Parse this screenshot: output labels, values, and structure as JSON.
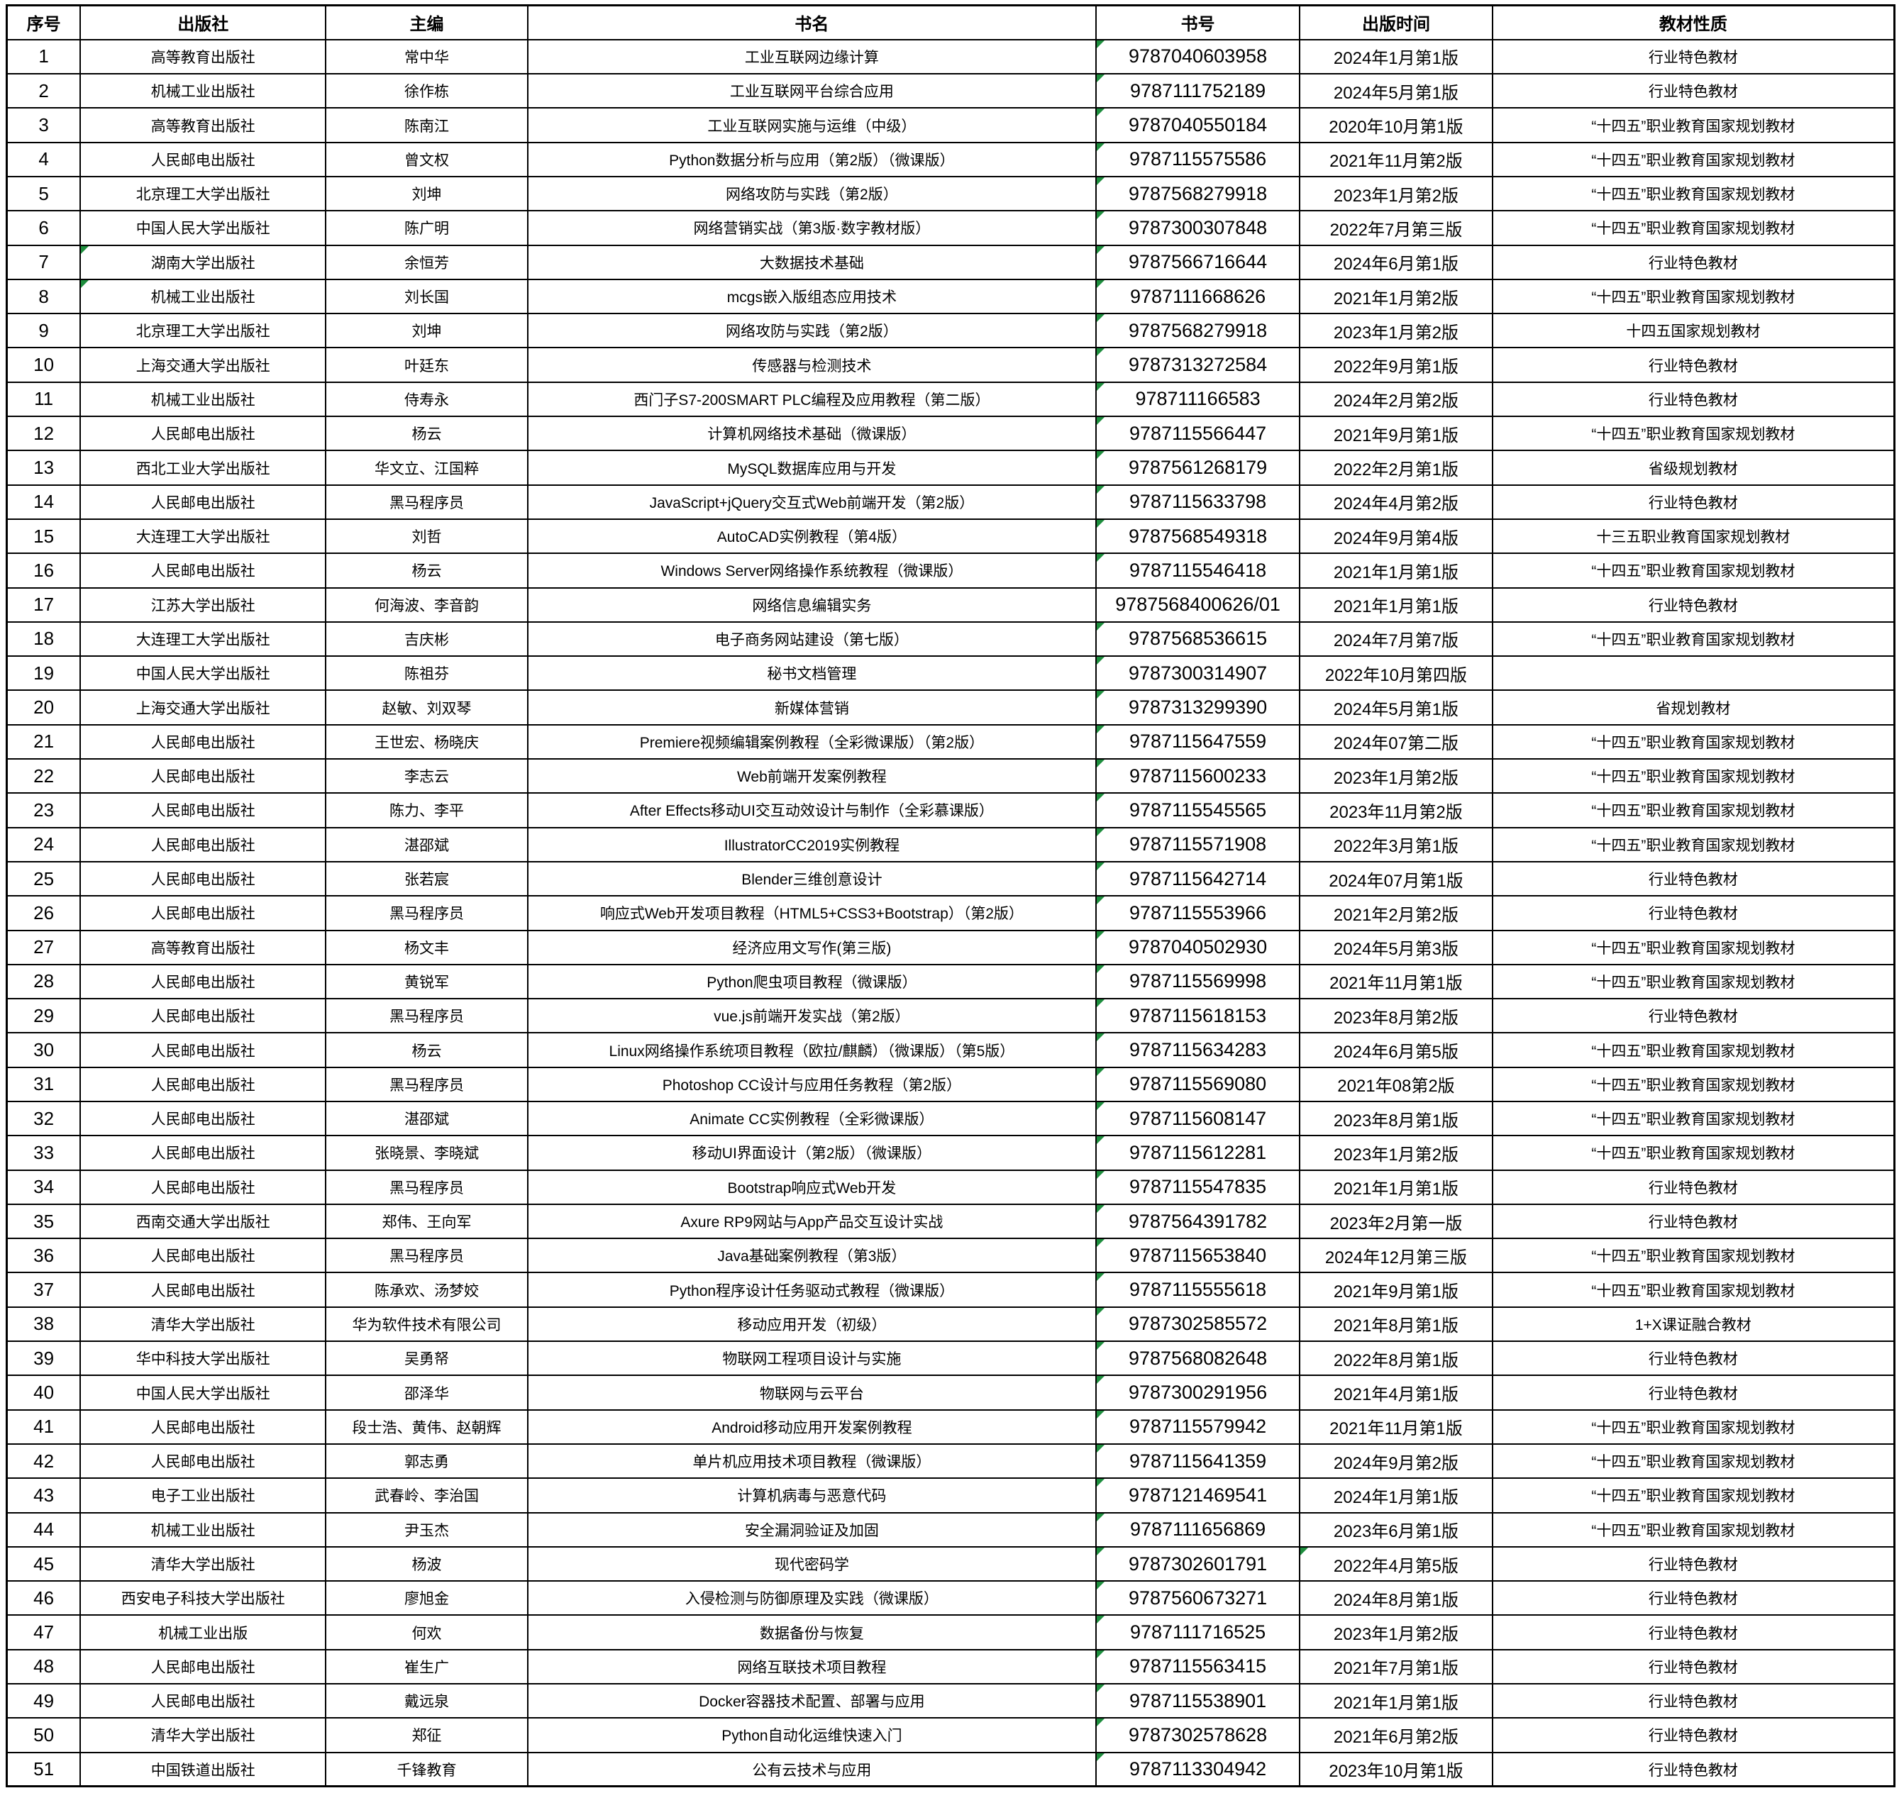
{
  "colors": {
    "border": "#000000",
    "background": "#ffffff",
    "error_indicator_green": "#1e8e3e"
  },
  "table": {
    "columns": [
      {
        "key": "seq",
        "label": "序号",
        "width_pct": 3.9
      },
      {
        "key": "publisher",
        "label": "出版社",
        "width_pct": 13.0
      },
      {
        "key": "editor",
        "label": "主编",
        "width_pct": 10.7
      },
      {
        "key": "title",
        "label": "书名",
        "width_pct": 30.1
      },
      {
        "key": "isbn",
        "label": "书号",
        "width_pct": 10.8
      },
      {
        "key": "date",
        "label": "出版时间",
        "width_pct": 10.2
      },
      {
        "key": "nature",
        "label": "教材性质",
        "width_pct": 21.3
      }
    ],
    "rows": [
      {
        "seq": "1",
        "publisher": "高等教育出版社",
        "editor": "常中华",
        "title": "工业互联网边缘计算",
        "isbn": "9787040603958",
        "date": "2024年1月第1版",
        "nature": "行业特色教材",
        "flags": [
          "isbn"
        ]
      },
      {
        "seq": "2",
        "publisher": "机械工业出版社",
        "editor": "徐作栋",
        "title": "工业互联网平台综合应用",
        "isbn": "9787111752189",
        "date": "2024年5月第1版",
        "nature": "行业特色教材",
        "flags": [
          "isbn"
        ]
      },
      {
        "seq": "3",
        "publisher": "高等教育出版社",
        "editor": "陈南江",
        "title": "工业互联网实施与运维（中级）",
        "isbn": "9787040550184",
        "date": "2020年10月第1版",
        "nature": "“十四五”职业教育国家规划教材",
        "flags": [
          "isbn"
        ]
      },
      {
        "seq": "4",
        "publisher": "人民邮电出版社",
        "editor": "曾文权",
        "title": "Python数据分析与应用（第2版）（微课版）",
        "isbn": "9787115575586",
        "date": "2021年11月第2版",
        "nature": "“十四五”职业教育国家规划教材",
        "flags": [
          "isbn"
        ]
      },
      {
        "seq": "5",
        "publisher": "北京理工大学出版社",
        "editor": "刘坤",
        "title": "网络攻防与实践（第2版）",
        "isbn": "9787568279918",
        "date": "2023年1月第2版",
        "nature": "“十四五”职业教育国家规划教材",
        "flags": [
          "isbn"
        ]
      },
      {
        "seq": "6",
        "publisher": "中国人民大学出版社",
        "editor": "陈广明",
        "title": "网络营销实战（第3版·数字教材版）",
        "isbn": "9787300307848",
        "date": "2022年7月第三版",
        "nature": "“十四五”职业教育国家规划教材",
        "flags": [
          "isbn"
        ]
      },
      {
        "seq": "7",
        "publisher": "湖南大学出版社",
        "editor": "余恒芳",
        "title": "大数据技术基础",
        "isbn": "9787566716644",
        "date": "2024年6月第1版",
        "nature": "行业特色教材",
        "flags": [
          "publisher",
          "isbn"
        ]
      },
      {
        "seq": "8",
        "publisher": "机械工业出版社",
        "editor": "刘长国",
        "title": "mcgs嵌入版组态应用技术",
        "isbn": "9787111668626",
        "date": "2021年1月第2版",
        "nature": "“十四五”职业教育国家规划教材",
        "flags": [
          "publisher",
          "isbn"
        ]
      },
      {
        "seq": "9",
        "publisher": "北京理工大学出版社",
        "editor": "刘坤",
        "title": "网络攻防与实践（第2版）",
        "isbn": "9787568279918",
        "date": "2023年1月第2版",
        "nature": "十四五国家规划教材",
        "flags": [
          "isbn"
        ]
      },
      {
        "seq": "10",
        "publisher": "上海交通大学出版社",
        "editor": "叶廷东",
        "title": "传感器与检测技术",
        "isbn": "9787313272584",
        "date": "2022年9月第1版",
        "nature": "行业特色教材",
        "flags": [
          "isbn"
        ]
      },
      {
        "seq": "11",
        "publisher": "机械工业出版社",
        "editor": "侍寿永",
        "title": "西门子S7-200SMART PLC编程及应用教程（第二版）",
        "isbn": "978711166583",
        "date": "2024年2月第2版",
        "nature": "行业特色教材",
        "flags": [
          "isbn"
        ]
      },
      {
        "seq": "12",
        "publisher": "人民邮电出版社",
        "editor": "杨云",
        "title": "计算机网络技术基础（微课版）",
        "isbn": "9787115566447",
        "date": "2021年9月第1版",
        "nature": "“十四五”职业教育国家规划教材",
        "flags": [
          "isbn"
        ]
      },
      {
        "seq": "13",
        "publisher": "西北工业大学出版社",
        "editor": "华文立、江国粹",
        "title": "MySQL数据库应用与开发",
        "isbn": "9787561268179",
        "date": "2022年2月第1版",
        "nature": "省级规划教材",
        "flags": [
          "isbn"
        ]
      },
      {
        "seq": "14",
        "publisher": "人民邮电出版社",
        "editor": "黑马程序员",
        "title": "JavaScript+jQuery交互式Web前端开发（第2版）",
        "isbn": "9787115633798",
        "date": "2024年4月第2版",
        "nature": "行业特色教材",
        "flags": [
          "isbn"
        ]
      },
      {
        "seq": "15",
        "publisher": "大连理工大学出版社",
        "editor": "刘哲",
        "title": "AutoCAD实例教程（第4版）",
        "isbn": "9787568549318",
        "date": "2024年9月第4版",
        "nature": "十三五职业教育国家规划教材",
        "flags": [
          "isbn"
        ]
      },
      {
        "seq": "16",
        "publisher": "人民邮电出版社",
        "editor": "杨云",
        "title": "Windows Server网络操作系统教程（微课版）",
        "isbn": "9787115546418",
        "date": "2021年1月第1版",
        "nature": "“十四五”职业教育国家规划教材",
        "flags": [
          "isbn"
        ]
      },
      {
        "seq": "17",
        "publisher": "江苏大学出版社",
        "editor": "何海波、李音韵",
        "title": "网络信息编辑实务",
        "isbn": "9787568400626/01",
        "date": "2021年1月第1版",
        "nature": "行业特色教材",
        "flags": []
      },
      {
        "seq": "18",
        "publisher": "大连理工大学出版社",
        "editor": "吉庆彬",
        "title": "电子商务网站建设（第七版）",
        "isbn": "9787568536615",
        "date": "2024年7月第7版",
        "nature": "“十四五”职业教育国家规划教材",
        "flags": [
          "isbn"
        ]
      },
      {
        "seq": "19",
        "publisher": "中国人民大学出版社",
        "editor": "陈祖芬",
        "title": "秘书文档管理",
        "isbn": "9787300314907",
        "date": "2022年10月第四版",
        "nature": "",
        "flags": [
          "isbn"
        ]
      },
      {
        "seq": "20",
        "publisher": "上海交通大学出版社",
        "editor": "赵敏、刘双琴",
        "title": "新媒体营销",
        "isbn": "9787313299390",
        "date": "2024年5月第1版",
        "nature": "省规划教材",
        "flags": [
          "isbn"
        ]
      },
      {
        "seq": "21",
        "publisher": "人民邮电出版社",
        "editor": "王世宏、杨晓庆",
        "title": "Premiere视频编辑案例教程（全彩微课版）（第2版）",
        "isbn": "9787115647559",
        "date": "2024年07第二版",
        "nature": "“十四五”职业教育国家规划教材",
        "flags": [
          "isbn"
        ]
      },
      {
        "seq": "22",
        "publisher": "人民邮电出版社",
        "editor": "李志云",
        "title": "Web前端开发案例教程",
        "isbn": "9787115600233",
        "date": "2023年1月第2版",
        "nature": "“十四五”职业教育国家规划教材",
        "flags": [
          "isbn"
        ]
      },
      {
        "seq": "23",
        "publisher": "人民邮电出版社",
        "editor": "陈力、李平",
        "title": "After Effects移动UI交互动效设计与制作（全彩慕课版）",
        "isbn": "9787115545565",
        "date": "2023年11月第2版",
        "nature": "“十四五”职业教育国家规划教材",
        "flags": [
          "isbn"
        ]
      },
      {
        "seq": "24",
        "publisher": "人民邮电出版社",
        "editor": "湛邵斌",
        "title": "IllustratorCC2019实例教程",
        "isbn": "9787115571908",
        "date": "2022年3月第1版",
        "nature": "“十四五”职业教育国家规划教材",
        "flags": [
          "isbn"
        ]
      },
      {
        "seq": "25",
        "publisher": "人民邮电出版社",
        "editor": "张若宸",
        "title": "Blender三维创意设计",
        "isbn": "9787115642714",
        "date": "2024年07月第1版",
        "nature": "行业特色教材",
        "flags": [
          "isbn"
        ]
      },
      {
        "seq": "26",
        "publisher": "人民邮电出版社",
        "editor": "黑马程序员",
        "title": "响应式Web开发项目教程（HTML5+CSS3+Bootstrap）（第2版）",
        "isbn": "9787115553966",
        "date": "2021年2月第2版",
        "nature": "行业特色教材",
        "flags": [
          "isbn"
        ]
      },
      {
        "seq": "27",
        "publisher": "高等教育出版社",
        "editor": "杨文丰",
        "title": "经济应用文写作(第三版)",
        "isbn": "9787040502930",
        "date": "2024年5月第3版",
        "nature": "“十四五”职业教育国家规划教材",
        "flags": [
          "isbn"
        ]
      },
      {
        "seq": "28",
        "publisher": "人民邮电出版社",
        "editor": "黄锐军",
        "title": "Python爬虫项目教程（微课版）",
        "isbn": "9787115569998",
        "date": "2021年11月第1版",
        "nature": "“十四五”职业教育国家规划教材",
        "flags": [
          "isbn"
        ]
      },
      {
        "seq": "29",
        "publisher": "人民邮电出版社",
        "editor": "黑马程序员",
        "title": "vue.js前端开发实战（第2版）",
        "isbn": "9787115618153",
        "date": "2023年8月第2版",
        "nature": "行业特色教材",
        "flags": [
          "isbn"
        ]
      },
      {
        "seq": "30",
        "publisher": "人民邮电出版社",
        "editor": "杨云",
        "title": "Linux网络操作系统项目教程（欧拉/麒麟）（微课版）（第5版）",
        "isbn": "9787115634283",
        "date": "2024年6月第5版",
        "nature": "“十四五”职业教育国家规划教材",
        "flags": [
          "isbn"
        ]
      },
      {
        "seq": "31",
        "publisher": "人民邮电出版社",
        "editor": "黑马程序员",
        "title": "Photoshop CC设计与应用任务教程（第2版）",
        "isbn": "9787115569080",
        "date": "2021年08第2版",
        "nature": "“十四五”职业教育国家规划教材",
        "flags": [
          "isbn"
        ]
      },
      {
        "seq": "32",
        "publisher": "人民邮电出版社",
        "editor": "湛邵斌",
        "title": "Animate CC实例教程（全彩微课版）",
        "isbn": "9787115608147",
        "date": "2023年8月第1版",
        "nature": "“十四五”职业教育国家规划教材",
        "flags": [
          "isbn"
        ]
      },
      {
        "seq": "33",
        "publisher": "人民邮电出版社",
        "editor": "张晓景、李晓斌",
        "title": "移动UI界面设计（第2版）（微课版）",
        "isbn": "9787115612281",
        "date": "2023年1月第2版",
        "nature": "“十四五”职业教育国家规划教材",
        "flags": [
          "isbn"
        ]
      },
      {
        "seq": "34",
        "publisher": "人民邮电出版社",
        "editor": "黑马程序员",
        "title": "Bootstrap响应式Web开发",
        "isbn": "9787115547835",
        "date": "2021年1月第1版",
        "nature": "行业特色教材",
        "flags": [
          "isbn"
        ]
      },
      {
        "seq": "35",
        "publisher": "西南交通大学出版社",
        "editor": "郑伟、王向军",
        "title": "Axure RP9网站与App产品交互设计实战",
        "isbn": "9787564391782",
        "date": "2023年2月第一版",
        "nature": "行业特色教材",
        "flags": [
          "isbn"
        ]
      },
      {
        "seq": "36",
        "publisher": "人民邮电出版社",
        "editor": "黑马程序员",
        "title": "Java基础案例教程（第3版）",
        "isbn": "9787115653840",
        "date": "2024年12月第三版",
        "nature": "“十四五”职业教育国家规划教材",
        "flags": [
          "isbn"
        ]
      },
      {
        "seq": "37",
        "publisher": "人民邮电出版社",
        "editor": "陈承欢、汤梦姣",
        "title": "Python程序设计任务驱动式教程（微课版）",
        "isbn": "9787115555618",
        "date": "2021年9月第1版",
        "nature": "“十四五”职业教育国家规划教材",
        "flags": [
          "isbn"
        ]
      },
      {
        "seq": "38",
        "publisher": "清华大学出版社",
        "editor": "华为软件技术有限公司",
        "title": "移动应用开发（初级）",
        "isbn": "9787302585572",
        "date": "2021年8月第1版",
        "nature": "1+X课证融合教材",
        "flags": [
          "isbn"
        ]
      },
      {
        "seq": "39",
        "publisher": "华中科技大学出版社",
        "editor": "吴勇帑",
        "title": "物联网工程项目设计与实施",
        "isbn": "9787568082648",
        "date": "2022年8月第1版",
        "nature": "行业特色教材",
        "flags": [
          "isbn"
        ]
      },
      {
        "seq": "40",
        "publisher": "中国人民大学出版社",
        "editor": "邵泽华",
        "title": "物联网与云平台",
        "isbn": "9787300291956",
        "date": "2021年4月第1版",
        "nature": "行业特色教材",
        "flags": [
          "isbn"
        ]
      },
      {
        "seq": "41",
        "publisher": "人民邮电出版社",
        "editor": "段士浩、黄伟、赵朝辉",
        "title": "Android移动应用开发案例教程",
        "isbn": "9787115579942",
        "date": "2021年11月第1版",
        "nature": "“十四五”职业教育国家规划教材",
        "flags": [
          "isbn"
        ]
      },
      {
        "seq": "42",
        "publisher": "人民邮电出版社",
        "editor": "郭志勇",
        "title": "单片机应用技术项目教程（微课版）",
        "isbn": "9787115641359",
        "date": "2024年9月第2版",
        "nature": "“十四五”职业教育国家规划教材",
        "flags": [
          "isbn"
        ]
      },
      {
        "seq": "43",
        "publisher": "电子工业出版社",
        "editor": "武春岭、李治国",
        "title": "计算机病毒与恶意代码",
        "isbn": "9787121469541",
        "date": "2024年1月第1版",
        "nature": "“十四五”职业教育国家规划教材",
        "flags": [
          "isbn"
        ]
      },
      {
        "seq": "44",
        "publisher": "机械工业出版社",
        "editor": "尹玉杰",
        "title": "安全漏洞验证及加固",
        "isbn": "9787111656869",
        "date": "2023年6月第1版",
        "nature": "“十四五”职业教育国家规划教材",
        "flags": [
          "isbn"
        ]
      },
      {
        "seq": "45",
        "publisher": "清华大学出版社",
        "editor": "杨波",
        "title": "现代密码学",
        "isbn": "9787302601791",
        "date": "2022年4月第5版",
        "nature": "行业特色教材",
        "flags": [
          "isbn",
          "date"
        ]
      },
      {
        "seq": "46",
        "publisher": "西安电子科技大学出版社",
        "editor": "廖旭金",
        "title": "入侵检测与防御原理及实践（微课版）",
        "isbn": "9787560673271",
        "date": "2024年8月第1版",
        "nature": "行业特色教材",
        "flags": [
          "isbn"
        ]
      },
      {
        "seq": "47",
        "publisher": "机械工业出版",
        "editor": "何欢",
        "title": "数据备份与恢复",
        "isbn": "9787111716525",
        "date": "2023年1月第2版",
        "nature": "行业特色教材",
        "flags": [
          "isbn"
        ]
      },
      {
        "seq": "48",
        "publisher": "人民邮电出版社",
        "editor": "崔生广",
        "title": "网络互联技术项目教程",
        "isbn": "9787115563415",
        "date": "2021年7月第1版",
        "nature": "行业特色教材",
        "flags": [
          "isbn"
        ]
      },
      {
        "seq": "49",
        "publisher": "人民邮电出版社",
        "editor": "戴远泉",
        "title": "Docker容器技术配置、部署与应用",
        "isbn": "9787115538901",
        "date": "2021年1月第1版",
        "nature": "行业特色教材",
        "flags": [
          "isbn"
        ]
      },
      {
        "seq": "50",
        "publisher": "清华大学出版社",
        "editor": "郑征",
        "title": "Python自动化运维快速入门",
        "isbn": "9787302578628",
        "date": "2021年6月第2版",
        "nature": "行业特色教材",
        "flags": [
          "isbn"
        ]
      },
      {
        "seq": "51",
        "publisher": "中国铁道出版社",
        "editor": "千锋教育",
        "title": "公有云技术与应用",
        "isbn": "9787113304942",
        "date": "2023年10月第1版",
        "nature": "行业特色教材",
        "flags": [
          "isbn"
        ]
      }
    ]
  }
}
